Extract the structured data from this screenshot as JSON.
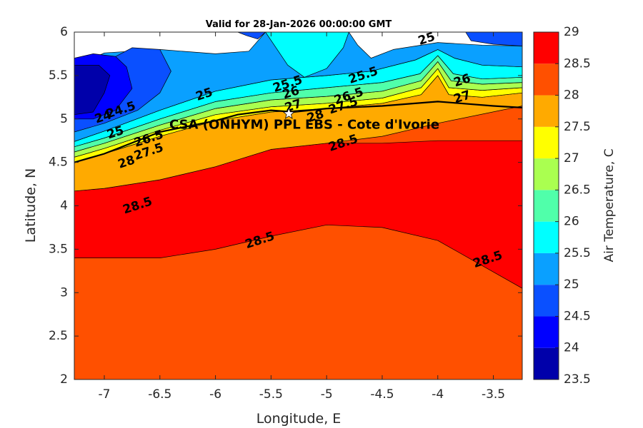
{
  "chart_data": {
    "type": "contour",
    "title": "Valid for 28-Jan-2026 00:00:00 GMT",
    "xlabel": "Longitude, E",
    "ylabel": "Latitude, N",
    "xlim": [
      -7.27,
      -3.24
    ],
    "ylim": [
      2,
      6
    ],
    "xticks": [
      -7,
      -6.5,
      -6,
      -5.5,
      -5,
      -4.5,
      -4,
      -3.5
    ],
    "yticks": [
      2,
      2.5,
      3,
      3.5,
      4,
      4.5,
      5,
      5.5,
      6
    ],
    "colorbar": {
      "label": "Air Temperature, C",
      "levels": [
        23.5,
        24,
        24.5,
        25,
        25.5,
        26,
        26.5,
        27,
        27.5,
        28,
        28.5,
        29
      ],
      "colors": [
        "#0000aa",
        "#0000ff",
        "#0a50ff",
        "#0aa0ff",
        "#00ffff",
        "#50ffaa",
        "#aaff50",
        "#ffff00",
        "#ffaa00",
        "#ff5000",
        "#ff0000",
        "#aa0000"
      ]
    },
    "site": {
      "name": "CSA (ONHYM) PPL EBS - Cote d'Ivorie",
      "lon": -5.34,
      "lat": 5.06
    },
    "contour_labels": [
      {
        "text": "25",
        "lon": -4.1,
        "lat": 5.92
      },
      {
        "text": "25.5",
        "lon": -5.35,
        "lat": 5.4
      },
      {
        "text": "25.5",
        "lon": -4.67,
        "lat": 5.5
      },
      {
        "text": "25",
        "lon": -6.1,
        "lat": 5.28
      },
      {
        "text": "26",
        "lon": -5.32,
        "lat": 5.3
      },
      {
        "text": "26",
        "lon": -3.78,
        "lat": 5.44
      },
      {
        "text": "26.5",
        "lon": -4.8,
        "lat": 5.26
      },
      {
        "text": "27",
        "lon": -5.3,
        "lat": 5.15
      },
      {
        "text": "27",
        "lon": -3.78,
        "lat": 5.25
      },
      {
        "text": "27.5",
        "lon": -4.85,
        "lat": 5.15
      },
      {
        "text": "28",
        "lon": -5.1,
        "lat": 5.03
      },
      {
        "text": "28.5",
        "lon": -4.85,
        "lat": 4.72
      },
      {
        "text": "28.5",
        "lon": -6.7,
        "lat": 4.0
      },
      {
        "text": "28.5",
        "lon": -5.6,
        "lat": 3.6
      },
      {
        "text": "28.5",
        "lon": -3.55,
        "lat": 3.38
      },
      {
        "text": "24",
        "lon": -7.01,
        "lat": 5.02
      },
      {
        "text": "24.5",
        "lon": -6.85,
        "lat": 5.1
      },
      {
        "text": "25",
        "lon": -6.9,
        "lat": 4.84
      },
      {
        "text": "26.5",
        "lon": -6.6,
        "lat": 4.77
      },
      {
        "text": "27.5",
        "lon": -6.6,
        "lat": 4.62
      },
      {
        "text": "28",
        "lon": -6.8,
        "lat": 4.5
      }
    ],
    "contour_bands": [
      {
        "fill": "#ff5000",
        "boundary": [
          [
            -7.27,
            2
          ],
          [
            -3.24,
            2
          ],
          [
            -3.24,
            5.15
          ],
          [
            -7.27,
            5.15
          ]
        ]
      },
      {
        "fill": "#ff0000",
        "boundary": [
          [
            -7.27,
            3.4
          ],
          [
            -6.5,
            3.4
          ],
          [
            -6,
            3.5
          ],
          [
            -5.5,
            3.65
          ],
          [
            -5,
            3.78
          ],
          [
            -4.5,
            3.75
          ],
          [
            -4,
            3.6
          ],
          [
            -3.24,
            3.05
          ],
          [
            -3.24,
            4.75
          ],
          [
            -3.6,
            4.75
          ],
          [
            -4,
            4.75
          ],
          [
            -4.5,
            4.72
          ],
          [
            -5,
            4.72
          ],
          [
            -5.5,
            4.65
          ],
          [
            -6,
            4.45
          ],
          [
            -6.5,
            4.3
          ],
          [
            -7,
            4.2
          ],
          [
            -7.27,
            4.17
          ]
        ]
      },
      {
        "fill": "#ffaa00",
        "boundary": [
          [
            -7.27,
            4.17
          ],
          [
            -7,
            4.2
          ],
          [
            -6.5,
            4.3
          ],
          [
            -6,
            4.45
          ],
          [
            -5.5,
            4.65
          ],
          [
            -5,
            4.72
          ],
          [
            -4.5,
            4.8
          ],
          [
            -4,
            4.95
          ],
          [
            -3.24,
            5.15
          ],
          [
            -3.24,
            5.3
          ],
          [
            -3.6,
            5.25
          ],
          [
            -3.9,
            5.28
          ],
          [
            -4,
            5.5
          ],
          [
            -4.15,
            5.28
          ],
          [
            -4.5,
            5.18
          ],
          [
            -5,
            5.12
          ],
          [
            -5.5,
            5.08
          ],
          [
            -6,
            4.98
          ],
          [
            -6.5,
            4.8
          ],
          [
            -7,
            4.6
          ],
          [
            -7.27,
            4.5
          ]
        ]
      },
      {
        "fill": "#ffff00",
        "boundary": [
          [
            -7.27,
            4.5
          ],
          [
            -7,
            4.6
          ],
          [
            -6.5,
            4.8
          ],
          [
            -6,
            4.98
          ],
          [
            -5.5,
            5.08
          ],
          [
            -5,
            5.12
          ],
          [
            -4.5,
            5.18
          ],
          [
            -4.15,
            5.28
          ],
          [
            -4,
            5.5
          ],
          [
            -3.9,
            5.28
          ],
          [
            -3.6,
            5.25
          ],
          [
            -3.24,
            5.3
          ],
          [
            -3.24,
            5.36
          ],
          [
            -3.6,
            5.33
          ],
          [
            -3.9,
            5.36
          ],
          [
            -4,
            5.58
          ],
          [
            -4.15,
            5.36
          ],
          [
            -4.5,
            5.24
          ],
          [
            -5,
            5.18
          ],
          [
            -5.5,
            5.14
          ],
          [
            -6,
            5.05
          ],
          [
            -6.5,
            4.87
          ],
          [
            -7,
            4.66
          ],
          [
            -7.27,
            4.56
          ]
        ]
      },
      {
        "fill": "#aaff50",
        "boundary": [
          [
            -7.27,
            4.56
          ],
          [
            -7,
            4.66
          ],
          [
            -6.5,
            4.87
          ],
          [
            -6,
            5.05
          ],
          [
            -5.5,
            5.14
          ],
          [
            -5,
            5.18
          ],
          [
            -4.5,
            5.24
          ],
          [
            -4.15,
            5.36
          ],
          [
            -4,
            5.58
          ],
          [
            -3.9,
            5.36
          ],
          [
            -3.6,
            5.33
          ],
          [
            -3.24,
            5.36
          ],
          [
            -3.24,
            5.42
          ],
          [
            -3.6,
            5.4
          ],
          [
            -3.88,
            5.44
          ],
          [
            -4,
            5.66
          ],
          [
            -4.15,
            5.44
          ],
          [
            -4.5,
            5.32
          ],
          [
            -5,
            5.26
          ],
          [
            -5.5,
            5.22
          ],
          [
            -6,
            5.12
          ],
          [
            -6.5,
            4.93
          ],
          [
            -7,
            4.72
          ],
          [
            -7.27,
            4.62
          ]
        ]
      },
      {
        "fill": "#50ffaa",
        "boundary": [
          [
            -7.27,
            4.62
          ],
          [
            -7,
            4.72
          ],
          [
            -6.5,
            4.93
          ],
          [
            -6,
            5.12
          ],
          [
            -5.5,
            5.22
          ],
          [
            -5,
            5.26
          ],
          [
            -4.5,
            5.32
          ],
          [
            -4.15,
            5.44
          ],
          [
            -4,
            5.66
          ],
          [
            -3.88,
            5.44
          ],
          [
            -3.6,
            5.4
          ],
          [
            -3.24,
            5.42
          ],
          [
            -3.24,
            5.48
          ],
          [
            -3.6,
            5.46
          ],
          [
            -3.86,
            5.52
          ],
          [
            -4,
            5.73
          ],
          [
            -4.16,
            5.52
          ],
          [
            -4.5,
            5.42
          ],
          [
            -5,
            5.36
          ],
          [
            -5.5,
            5.3
          ],
          [
            -6,
            5.2
          ],
          [
            -6.5,
            5.0
          ],
          [
            -7,
            4.78
          ],
          [
            -7.27,
            4.68
          ]
        ]
      },
      {
        "fill": "#00ffff",
        "boundary": [
          [
            -7.27,
            4.68
          ],
          [
            -7,
            4.78
          ],
          [
            -6.5,
            5.0
          ],
          [
            -6,
            5.2
          ],
          [
            -5.5,
            5.3
          ],
          [
            -5,
            5.36
          ],
          [
            -4.5,
            5.42
          ],
          [
            -4.16,
            5.52
          ],
          [
            -4,
            5.73
          ],
          [
            -3.86,
            5.52
          ],
          [
            -3.6,
            5.46
          ],
          [
            -3.24,
            5.48
          ],
          [
            -3.24,
            5.6
          ],
          [
            -3.6,
            5.62
          ],
          [
            -3.85,
            5.7
          ],
          [
            -4,
            5.8
          ],
          [
            -4.2,
            5.68
          ],
          [
            -4.6,
            5.55
          ],
          [
            -5,
            5.5
          ],
          [
            -5.5,
            5.45
          ],
          [
            -6,
            5.32
          ],
          [
            -6.5,
            5.1
          ],
          [
            -7,
            4.86
          ],
          [
            -7.27,
            4.74
          ]
        ]
      },
      {
        "fill": "#0aa0ff",
        "boundary": [
          [
            -7.27,
            4.74
          ],
          [
            -7,
            4.86
          ],
          [
            -6.5,
            5.1
          ],
          [
            -6,
            5.32
          ],
          [
            -5.5,
            5.45
          ],
          [
            -5,
            5.5
          ],
          [
            -4.6,
            5.55
          ],
          [
            -4.2,
            5.68
          ],
          [
            -4,
            5.8
          ],
          [
            -3.85,
            5.7
          ],
          [
            -3.6,
            5.62
          ],
          [
            -3.24,
            5.6
          ],
          [
            -3.24,
            5.84
          ],
          [
            -3.6,
            5.85
          ],
          [
            -4,
            5.88
          ],
          [
            -4.4,
            5.8
          ],
          [
            -4.6,
            5.7
          ],
          [
            -4.72,
            5.85
          ],
          [
            -4.8,
            6
          ],
          [
            -5.55,
            6
          ],
          [
            -5.7,
            5.78
          ],
          [
            -6,
            5.75
          ],
          [
            -6.5,
            5.8
          ],
          [
            -7,
            5.76
          ],
          [
            -7.27,
            5.6
          ]
        ]
      },
      {
        "fill": "#00ffff",
        "boundary": [
          [
            -5.55,
            6
          ],
          [
            -5.35,
            5.62
          ],
          [
            -5.2,
            5.48
          ],
          [
            -5,
            5.58
          ],
          [
            -4.85,
            5.82
          ],
          [
            -4.8,
            6
          ]
        ]
      },
      {
        "fill": "#0a50ff",
        "boundary": [
          [
            -7.27,
            4.85
          ],
          [
            -7,
            4.95
          ],
          [
            -6.7,
            5.1
          ],
          [
            -6.5,
            5.3
          ],
          [
            -6.4,
            5.55
          ],
          [
            -6.5,
            5.8
          ],
          [
            -6.75,
            5.82
          ],
          [
            -7,
            5.65
          ],
          [
            -7.27,
            5.55
          ]
        ]
      },
      {
        "fill": "#0a50ff",
        "boundary": [
          [
            -5.8,
            6
          ],
          [
            -5.55,
            6
          ],
          [
            -5.62,
            5.92
          ],
          [
            -5.72,
            5.96
          ]
        ]
      },
      {
        "fill": "#0a50ff",
        "boundary": [
          [
            -3.24,
            5.84
          ],
          [
            -3.5,
            5.86
          ],
          [
            -3.7,
            5.9
          ],
          [
            -3.75,
            6
          ],
          [
            -3.24,
            6
          ]
        ]
      },
      {
        "fill": "#0000ff",
        "boundary": [
          [
            -7.27,
            5.0
          ],
          [
            -7.1,
            5.0
          ],
          [
            -6.9,
            5.1
          ],
          [
            -6.75,
            5.35
          ],
          [
            -6.8,
            5.6
          ],
          [
            -6.9,
            5.72
          ],
          [
            -7.1,
            5.75
          ],
          [
            -7.27,
            5.7
          ]
        ]
      },
      {
        "fill": "#0000aa",
        "boundary": [
          [
            -7.27,
            5.05
          ],
          [
            -7.1,
            5.08
          ],
          [
            -7.0,
            5.3
          ],
          [
            -6.95,
            5.5
          ],
          [
            -7.05,
            5.62
          ],
          [
            -7.27,
            5.62
          ]
        ]
      }
    ],
    "coastline": [
      [
        -7.27,
        4.5
      ],
      [
        -7,
        4.6
      ],
      [
        -6.5,
        4.85
      ],
      [
        -6,
        4.98
      ],
      [
        -5.8,
        5.05
      ],
      [
        -5.5,
        5.1
      ],
      [
        -5.3,
        5.08
      ],
      [
        -5,
        5.12
      ],
      [
        -4.5,
        5.15
      ],
      [
        -4,
        5.2
      ],
      [
        -3.8,
        5.18
      ],
      [
        -3.5,
        5.15
      ],
      [
        -3.24,
        5.13
      ]
    ]
  }
}
